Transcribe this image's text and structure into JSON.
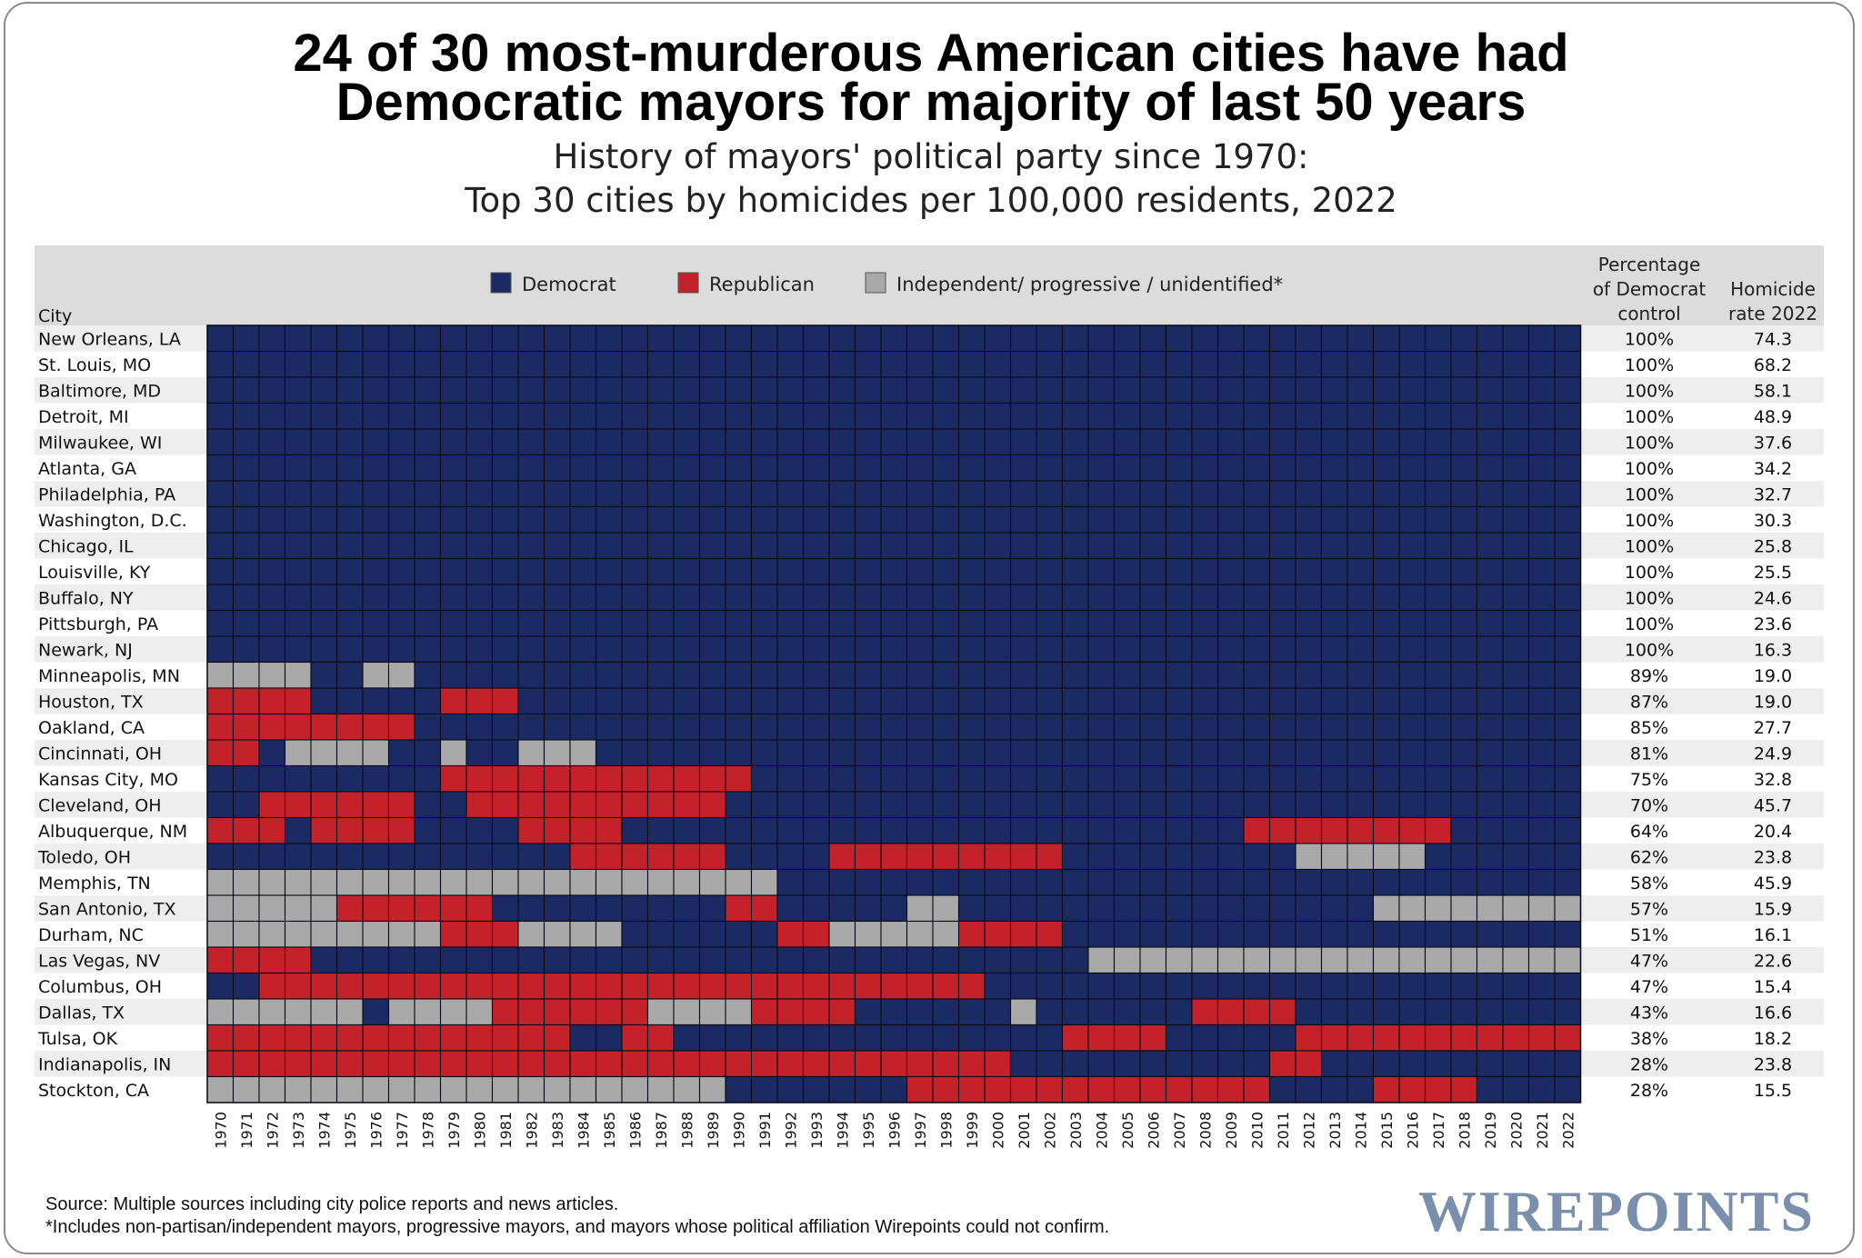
{
  "title_line1": "24 of 30 most-murderous American cities have had",
  "title_line2": "Democratic mayors for majority of last 50 years",
  "subtitle_line1": "History of mayors' political party since 1970:",
  "subtitle_line2": "Top 30 cities by homicides per 100,000 residents, 2022",
  "source_line1": "Source: Multiple sources including city police reports and news articles.",
  "source_line2": "*Includes non-partisan/independent mayors, progressive mayors, and mayors whose political affiliation Wirepoints could not confirm.",
  "logo_text": "WIREPOINTS",
  "colors": {
    "D": "#1b2a63",
    "R": "#c4212b",
    "I": "#a9a9a9",
    "header_bg": "#dcdcdc",
    "stripe_bg": "#eeeeee",
    "logo": "#7a8fab"
  },
  "chart_data": {
    "type": "heatmap",
    "city_header": "City",
    "legend": [
      {
        "key": "D",
        "label": "Democrat"
      },
      {
        "key": "R",
        "label": "Republican"
      },
      {
        "key": "I",
        "label": "Independent/ progressive   / unidentified*"
      }
    ],
    "column_headers": {
      "pct": [
        "Percentage",
        "of Democrat",
        "control"
      ],
      "rate": [
        "Homicide",
        "rate 2022"
      ]
    },
    "years": [
      "1970",
      "1971",
      "1972",
      "1973",
      "1974",
      "1975",
      "1976",
      "1977",
      "1978",
      "1979",
      "1980",
      "1981",
      "1982",
      "1983",
      "1984",
      "1985",
      "1986",
      "1987",
      "1988",
      "1989",
      "1990",
      "1991",
      "1992",
      "1993",
      "1994",
      "1995",
      "1996",
      "1997",
      "1998",
      "1999",
      "2000",
      "2001",
      "2002",
      "2003",
      "2004",
      "2005",
      "2006",
      "2007",
      "2008",
      "2009",
      "2010",
      "2011",
      "2012",
      "2013",
      "2014",
      "2015",
      "2016",
      "2017",
      "2018",
      "2019",
      "2020",
      "2021",
      "2022"
    ],
    "rows": [
      {
        "city": "New Orleans, LA",
        "pct": "100%",
        "rate": "74.3",
        "cells": "DDDDDDDDDDDDDDDDDDDDDDDDDDDDDDDDDDDDDDDDDDDDDDDDDDDDD"
      },
      {
        "city": "St. Louis, MO",
        "pct": "100%",
        "rate": "68.2",
        "cells": "DDDDDDDDDDDDDDDDDDDDDDDDDDDDDDDDDDDDDDDDDDDDDDDDDDDDD"
      },
      {
        "city": "Baltimore, MD",
        "pct": "100%",
        "rate": "58.1",
        "cells": "DDDDDDDDDDDDDDDDDDDDDDDDDDDDDDDDDDDDDDDDDDDDDDDDDDDDD"
      },
      {
        "city": "Detroit, MI",
        "pct": "100%",
        "rate": "48.9",
        "cells": "DDDDDDDDDDDDDDDDDDDDDDDDDDDDDDDDDDDDDDDDDDDDDDDDDDDDD"
      },
      {
        "city": "Milwaukee, WI",
        "pct": "100%",
        "rate": "37.6",
        "cells": "DDDDDDDDDDDDDDDDDDDDDDDDDDDDDDDDDDDDDDDDDDDDDDDDDDDDD"
      },
      {
        "city": "Atlanta, GA",
        "pct": "100%",
        "rate": "34.2",
        "cells": "DDDDDDDDDDDDDDDDDDDDDDDDDDDDDDDDDDDDDDDDDDDDDDDDDDDDD"
      },
      {
        "city": "Philadelphia, PA",
        "pct": "100%",
        "rate": "32.7",
        "cells": "DDDDDDDDDDDDDDDDDDDDDDDDDDDDDDDDDDDDDDDDDDDDDDDDDDDDD"
      },
      {
        "city": "Washington, D.C.",
        "pct": "100%",
        "rate": "30.3",
        "cells": "DDDDDDDDDDDDDDDDDDDDDDDDDDDDDDDDDDDDDDDDDDDDDDDDDDDDD"
      },
      {
        "city": "Chicago, IL",
        "pct": "100%",
        "rate": "25.8",
        "cells": "DDDDDDDDDDDDDDDDDDDDDDDDDDDDDDDDDDDDDDDDDDDDDDDDDDDDD"
      },
      {
        "city": "Louisville, KY",
        "pct": "100%",
        "rate": "25.5",
        "cells": "DDDDDDDDDDDDDDDDDDDDDDDDDDDDDDDDDDDDDDDDDDDDDDDDDDDDD"
      },
      {
        "city": "Buffalo, NY",
        "pct": "100%",
        "rate": "24.6",
        "cells": "DDDDDDDDDDDDDDDDDDDDDDDDDDDDDDDDDDDDDDDDDDDDDDDDDDDDD"
      },
      {
        "city": "Pittsburgh, PA",
        "pct": "100%",
        "rate": "23.6",
        "cells": "DDDDDDDDDDDDDDDDDDDDDDDDDDDDDDDDDDDDDDDDDDDDDDDDDDDDD"
      },
      {
        "city": "Newark, NJ",
        "pct": "100%",
        "rate": "16.3",
        "cells": "DDDDDDDDDDDDDDDDDDDDDDDDDDDDDDDDDDDDDDDDDDDDDDDDDDDDD"
      },
      {
        "city": "Minneapolis, MN",
        "pct": "89%",
        "rate": "19.0",
        "cells": "IIIIDDIIDDDDDDDDDDDDDDDDDDDDDDDDDDDDDDDDDDDDDDDDDDDDD"
      },
      {
        "city": "Houston, TX",
        "pct": "87%",
        "rate": "19.0",
        "cells": "RRRRDDDDDRRRDDDDDDDDDDDDDDDDDDDDDDDDDDDDDDDDDDDDDDDDD"
      },
      {
        "city": "Oakland, CA",
        "pct": "85%",
        "rate": "27.7",
        "cells": "RRRRRRRRDDDDDDDDDDDDDDDDDDDDDDDDDDDDDDDDDDDDDDDDDDDDD"
      },
      {
        "city": "Cincinnati, OH",
        "pct": "81%",
        "rate": "24.9",
        "cells": "RRDIIIIDDIDDIIIDDDDDDDDDDDDDDDDDDDDDDDDDDDDDDDDDDDDDD"
      },
      {
        "city": "Kansas City, MO",
        "pct": "75%",
        "rate": "32.8",
        "cells": "DDDDDDDDDRRRRRRRRRRRRDDDDDDDDDDDDDDDDDDDDDDDDDDDDDDDD"
      },
      {
        "city": "Cleveland, OH",
        "pct": "70%",
        "rate": "45.7",
        "cells": "DDRRRRRRDDRRRRRRRRRRDDDDDDDDDDDDDDDDDDDDDDDDDDDDDDDDD"
      },
      {
        "city": "Albuquerque, NM",
        "pct": "64%",
        "rate": "20.4",
        "cells": "RRRDRRRRDDDDRRRRDDDDDDDDDDDDDDDDDDDDDDDDRRRRRRRRDDDDD"
      },
      {
        "city": "Toledo, OH",
        "pct": "62%",
        "rate": "23.8",
        "cells": "DDDDDDDDDDDDDDRRRRRRDDDDRRRRRRRRRDDDDDDDDDIIIIIDDDDDDD"
      },
      {
        "city": "Memphis, TN",
        "pct": "58%",
        "rate": "45.9",
        "cells": "IIIIIIIIIIIIIIIIIIIIIIDDDDDDDDDDDDDDDDDDDDDDDDDDDDDDD"
      },
      {
        "city": "San Antonio, TX",
        "pct": "57%",
        "rate": "15.9",
        "cells": "IIIIIRRRRRRDDDDDDDDDRRDDDDDIIDDDDDDDDDDDDDDDDIIIIIIIII"
      },
      {
        "city": "Durham, NC",
        "pct": "51%",
        "rate": "16.1",
        "cells": "IIIIIIIIIRRRIIIIDDDDDDRRIIIIIRRRRDDDDDDDDDDDDDDDDDDDD"
      },
      {
        "city": "Las Vegas, NV",
        "pct": "47%",
        "rate": "22.6",
        "cells": "RRRRDDDDDDDDDDDDDDDDDDDDDDDDDDDDDDIIIIIIIIIIIIIIIIIIIII"
      },
      {
        "city": "Columbus, OH",
        "pct": "47%",
        "rate": "15.4",
        "cells": "DDRRRRRRRRRRRRRRRRRRRRRRRRRRRRDDDDDDDDDDDDDDDDDDDDDDD"
      },
      {
        "city": "Dallas, TX",
        "pct": "43%",
        "rate": "16.6",
        "cells": "IIIIIIDIIIIRRRRRRIIIIRRRRDDDDDDIDDDDDDRRRRDDDDDDDDDDDD"
      },
      {
        "city": "Tulsa, OK",
        "pct": "38%",
        "rate": "18.2",
        "cells": "RRRRRRRRRRRRRRDDRRDDDDDDDDDDDDDDDRRRRDDDDDRRRRRRRRRRRRR"
      },
      {
        "city": "Indianapolis, IN",
        "pct": "28%",
        "rate": "23.8",
        "cells": "RRRRRRRRRRRRRRRRRRRRRRRRRRRRRRRDDDDDDDDDDRRDDDDDDDDDDD"
      },
      {
        "city": "Stockton, CA",
        "pct": "28%",
        "rate": "15.5",
        "cells": "IIIIIIIIIIIIIIIIIIIIDDDDDDDRRRRRRRRRRRRRRDDDDRRRRDDDDRR"
      }
    ]
  }
}
